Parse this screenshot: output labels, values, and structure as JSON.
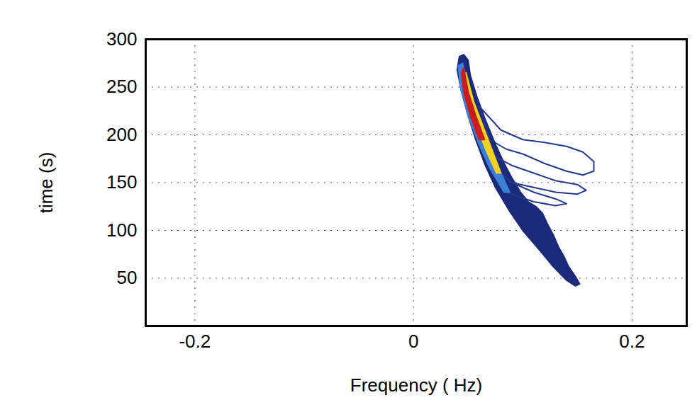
{
  "chart_data": {
    "type": "contour",
    "xlabel": "Frequency ( Hz)",
    "ylabel": "time (s)",
    "xlim": [
      -0.245,
      0.25
    ],
    "ylim": [
      0,
      300
    ],
    "xticks": [
      -0.2,
      0,
      0.2
    ],
    "yticks": [
      50,
      100,
      150,
      200,
      250,
      300
    ],
    "grid": true,
    "series": [
      {
        "type": "area",
        "color": "#1c2a7a",
        "x": [
          0.042,
          0.04,
          0.044,
          0.05,
          0.057,
          0.065,
          0.075,
          0.088,
          0.1,
          0.115,
          0.128,
          0.14,
          0.148,
          0.152,
          0.148,
          0.142,
          0.138,
          0.133,
          0.128,
          0.122,
          0.118,
          0.112,
          0.105,
          0.098,
          0.09,
          0.083,
          0.075,
          0.066,
          0.058,
          0.052,
          0.05,
          0.046
        ],
        "y": [
          282,
          268,
          245,
          220,
          195,
          170,
          145,
          120,
          100,
          80,
          62,
          48,
          42,
          44,
          52,
          62,
          72,
          82,
          95,
          108,
          118,
          125,
          130,
          140,
          155,
          170,
          190,
          215,
          240,
          262,
          278,
          284
        ]
      },
      {
        "type": "line",
        "color": "#24388f",
        "x": [
          0.06,
          0.08,
          0.1,
          0.12,
          0.14,
          0.155,
          0.165,
          0.165,
          0.155,
          0.14,
          0.12,
          0.1,
          0.085,
          0.07,
          0.06
        ],
        "y": [
          230,
          205,
          195,
          192,
          188,
          182,
          172,
          162,
          158,
          162,
          170,
          180,
          185,
          195,
          230
        ]
      },
      {
        "type": "line",
        "color": "#24388f",
        "x": [
          0.07,
          0.09,
          0.11,
          0.13,
          0.15,
          0.158,
          0.15,
          0.13,
          0.11,
          0.09,
          0.08,
          0.07
        ],
        "y": [
          180,
          168,
          160,
          152,
          148,
          142,
          138,
          140,
          145,
          150,
          160,
          180
        ]
      },
      {
        "type": "line",
        "color": "#24388f",
        "x": [
          0.07,
          0.09,
          0.11,
          0.13,
          0.14,
          0.13,
          0.11,
          0.09,
          0.07
        ],
        "y": [
          165,
          150,
          140,
          133,
          128,
          126,
          130,
          138,
          165
        ]
      },
      {
        "type": "area",
        "color": "#3d7fd6",
        "x": [
          0.045,
          0.05,
          0.06,
          0.07,
          0.08,
          0.088,
          0.083,
          0.07,
          0.06,
          0.05,
          0.043,
          0.041
        ],
        "y": [
          275,
          250,
          215,
          185,
          160,
          140,
          140,
          165,
          190,
          220,
          250,
          272
        ]
      },
      {
        "type": "area",
        "color": "#f0d020",
        "x": [
          0.048,
          0.055,
          0.065,
          0.075,
          0.08,
          0.076,
          0.066,
          0.056,
          0.048,
          0.045
        ],
        "y": [
          265,
          235,
          205,
          175,
          160,
          160,
          185,
          215,
          245,
          262
        ]
      },
      {
        "type": "area",
        "color": "#c81e1e",
        "x": [
          0.046,
          0.05,
          0.057,
          0.065,
          0.06,
          0.052,
          0.046,
          0.044
        ],
        "y": [
          270,
          245,
          220,
          195,
          195,
          220,
          245,
          265
        ]
      }
    ]
  }
}
